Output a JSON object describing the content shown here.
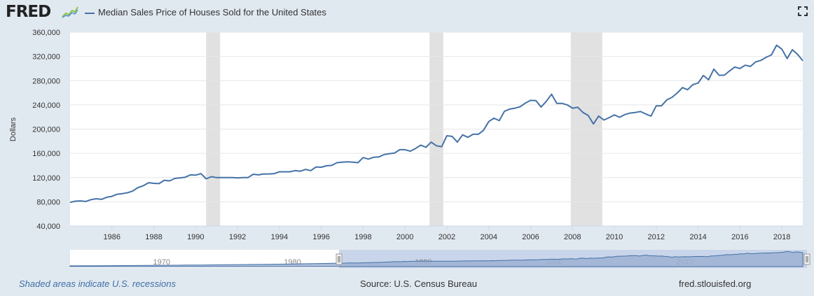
{
  "header": {
    "logo": "FRED",
    "legend_label": "Median Sales Price of Houses Sold for the United States",
    "fullscreen_icon": "expand-icon"
  },
  "footer": {
    "recession_note": "Shaded areas indicate U.S. recessions",
    "source": "Source: U.S. Census Bureau",
    "site": "fred.stlouisfed.org"
  },
  "colors": {
    "line": "#4572a7",
    "recession": "#e1e1e1",
    "background": "#e1e9f0",
    "plot": "#ffffff",
    "grid": "#e6e6e6",
    "navigator_fill": "#9db1d3"
  },
  "chart_data": {
    "type": "line",
    "ylabel": "Dollars",
    "ylim": [
      40000,
      360000
    ],
    "xlim": [
      1984.0,
      2019.0
    ],
    "y_ticks": [
      40000,
      80000,
      120000,
      160000,
      200000,
      240000,
      280000,
      320000,
      360000
    ],
    "y_tick_labels": [
      "40,000",
      "80,000",
      "120,000",
      "160,000",
      "200,000",
      "240,000",
      "280,000",
      "320,000",
      "360,000"
    ],
    "x_ticks": [
      1986,
      1988,
      1990,
      1992,
      1994,
      1996,
      1998,
      2000,
      2002,
      2004,
      2006,
      2008,
      2010,
      2012,
      2014,
      2016,
      2018
    ],
    "grid": "horizontal",
    "recessions": [
      [
        1990.5,
        1991.17
      ],
      [
        2001.17,
        2001.83
      ],
      [
        2007.92,
        2009.42
      ]
    ],
    "series": [
      {
        "x": [
          1984.0,
          1984.25,
          1984.5,
          1984.75,
          1985.0,
          1985.25,
          1985.5,
          1985.75,
          1986.0,
          1986.25,
          1986.5,
          1986.75,
          1987.0,
          1987.25,
          1987.5,
          1987.75,
          1988.0,
          1988.25,
          1988.5,
          1988.75,
          1989.0,
          1989.25,
          1989.5,
          1989.75,
          1990.0,
          1990.25,
          1990.5,
          1990.75,
          1991.0,
          1991.25,
          1991.5,
          1991.75,
          1992.0,
          1992.25,
          1992.5,
          1992.75,
          1993.0,
          1993.25,
          1993.5,
          1993.75,
          1994.0,
          1994.25,
          1994.5,
          1994.75,
          1995.0,
          1995.25,
          1995.5,
          1995.75,
          1996.0,
          1996.25,
          1996.5,
          1996.75,
          1997.0,
          1997.25,
          1997.5,
          1997.75,
          1998.0,
          1998.25,
          1998.5,
          1998.75,
          1999.0,
          1999.25,
          1999.5,
          1999.75,
          2000.0,
          2000.25,
          2000.5,
          2000.75,
          2001.0,
          2001.25,
          2001.5,
          2001.75,
          2002.0,
          2002.25,
          2002.5,
          2002.75,
          2003.0,
          2003.25,
          2003.5,
          2003.75,
          2004.0,
          2004.25,
          2004.5,
          2004.75,
          2005.0,
          2005.25,
          2005.5,
          2005.75,
          2006.0,
          2006.25,
          2006.5,
          2006.75,
          2007.0,
          2007.25,
          2007.5,
          2007.75,
          2008.0,
          2008.25,
          2008.5,
          2008.75,
          2009.0,
          2009.25,
          2009.5,
          2009.75,
          2010.0,
          2010.25,
          2010.5,
          2010.75,
          2011.0,
          2011.25,
          2011.5,
          2011.75,
          2012.0,
          2012.25,
          2012.5,
          2012.75,
          2013.0,
          2013.25,
          2013.5,
          2013.75,
          2014.0,
          2014.25,
          2014.5,
          2014.75,
          2015.0,
          2015.25,
          2015.5,
          2015.75,
          2016.0,
          2016.25,
          2016.5,
          2016.75,
          2017.0,
          2017.25,
          2017.5,
          2017.75,
          2018.0,
          2018.25,
          2018.5,
          2018.75,
          2019.0
        ],
        "values": [
          79000,
          81000,
          81500,
          80500,
          83500,
          85000,
          84000,
          87500,
          89000,
          92500,
          93500,
          95000,
          98000,
          103500,
          106500,
          111500,
          110500,
          110000,
          115500,
          114500,
          118500,
          119500,
          120500,
          124500,
          124000,
          126500,
          118000,
          121500,
          120000,
          120000,
          120000,
          120000,
          119500,
          120000,
          120000,
          125500,
          124500,
          126000,
          126000,
          126500,
          129500,
          129500,
          129500,
          131500,
          130500,
          133500,
          131500,
          137500,
          137000,
          139500,
          140000,
          144500,
          145500,
          146000,
          145500,
          144500,
          153000,
          150500,
          153500,
          154000,
          158000,
          159500,
          160500,
          166000,
          166000,
          163500,
          168000,
          173500,
          170000,
          178500,
          172500,
          171000,
          189000,
          188000,
          178500,
          190500,
          186500,
          191500,
          191500,
          198000,
          212500,
          218000,
          214000,
          229500,
          233000,
          234500,
          237000,
          243000,
          247500,
          247000,
          236500,
          246000,
          257500,
          242500,
          242500,
          240000,
          234500,
          236000,
          227500,
          222500,
          208500,
          221500,
          215000,
          219000,
          223500,
          219500,
          224000,
          226500,
          227500,
          229000,
          225000,
          221500,
          238500,
          238500,
          248000,
          252500,
          259500,
          268500,
          265000,
          273500,
          276000,
          288500,
          281500,
          299000,
          289000,
          289000,
          296000,
          302500,
          300000,
          305500,
          303500,
          311000,
          313500,
          318500,
          322500,
          338500,
          332000,
          316500,
          331000,
          323500,
          313000
        ]
      }
    ]
  },
  "navigator": {
    "labels": [
      "1970",
      "1980",
      "1990",
      "2000",
      "2010"
    ]
  }
}
